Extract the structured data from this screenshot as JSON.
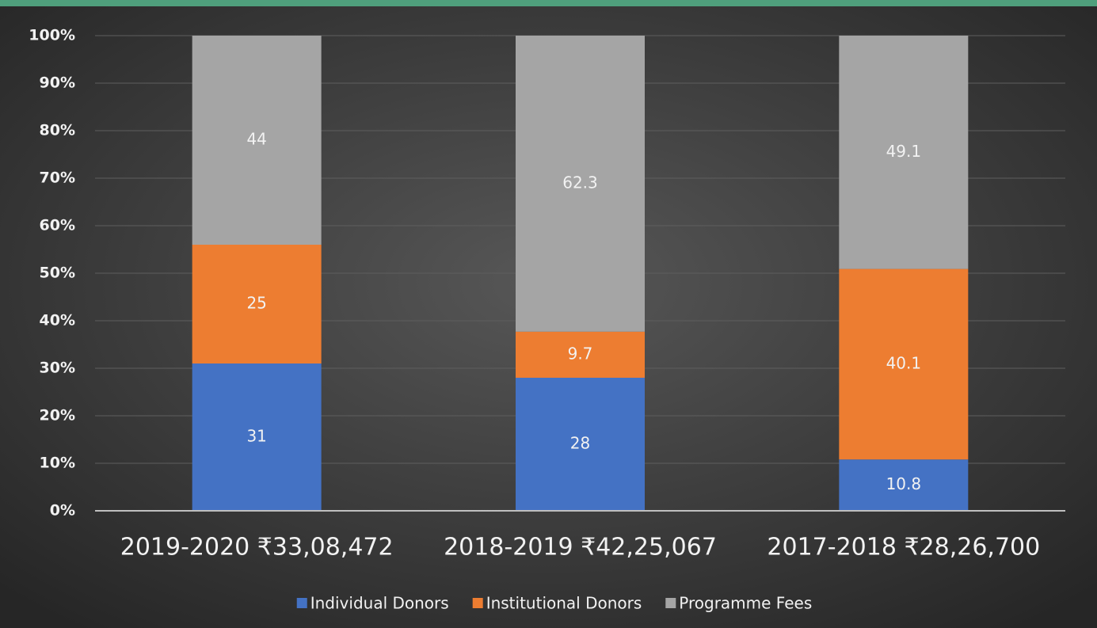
{
  "chart_data": {
    "type": "stacked_bar",
    "categories": [
      "2019-2020 ₹33,08,472",
      "2018-2019 ₹42,25,067",
      "2017-2018 ₹28,26,700"
    ],
    "series": [
      {
        "name": "Individual Donors",
        "color": "#4472c4",
        "values": [
          31,
          28,
          10.8
        ]
      },
      {
        "name": "Institutional Donors",
        "color": "#ed7d31",
        "values": [
          25,
          9.7,
          40.1
        ]
      },
      {
        "name": "Programme Fees",
        "color": "#a5a5a5",
        "values": [
          44,
          62.3,
          49.1
        ]
      }
    ],
    "ylim": [
      0,
      100
    ],
    "yticks": [
      {
        "value": 0,
        "label": "0%"
      },
      {
        "value": 10,
        "label": "10%"
      },
      {
        "value": 20,
        "label": "20%"
      },
      {
        "value": 30,
        "label": "30%"
      },
      {
        "value": 40,
        "label": "40%"
      },
      {
        "value": 50,
        "label": "50%"
      },
      {
        "value": 60,
        "label": "60%"
      },
      {
        "value": 70,
        "label": "70%"
      },
      {
        "value": 80,
        "label": "80%"
      },
      {
        "value": 90,
        "label": "90%"
      },
      {
        "value": 100,
        "label": "100%"
      }
    ],
    "grid": true,
    "legend": "bottom"
  }
}
